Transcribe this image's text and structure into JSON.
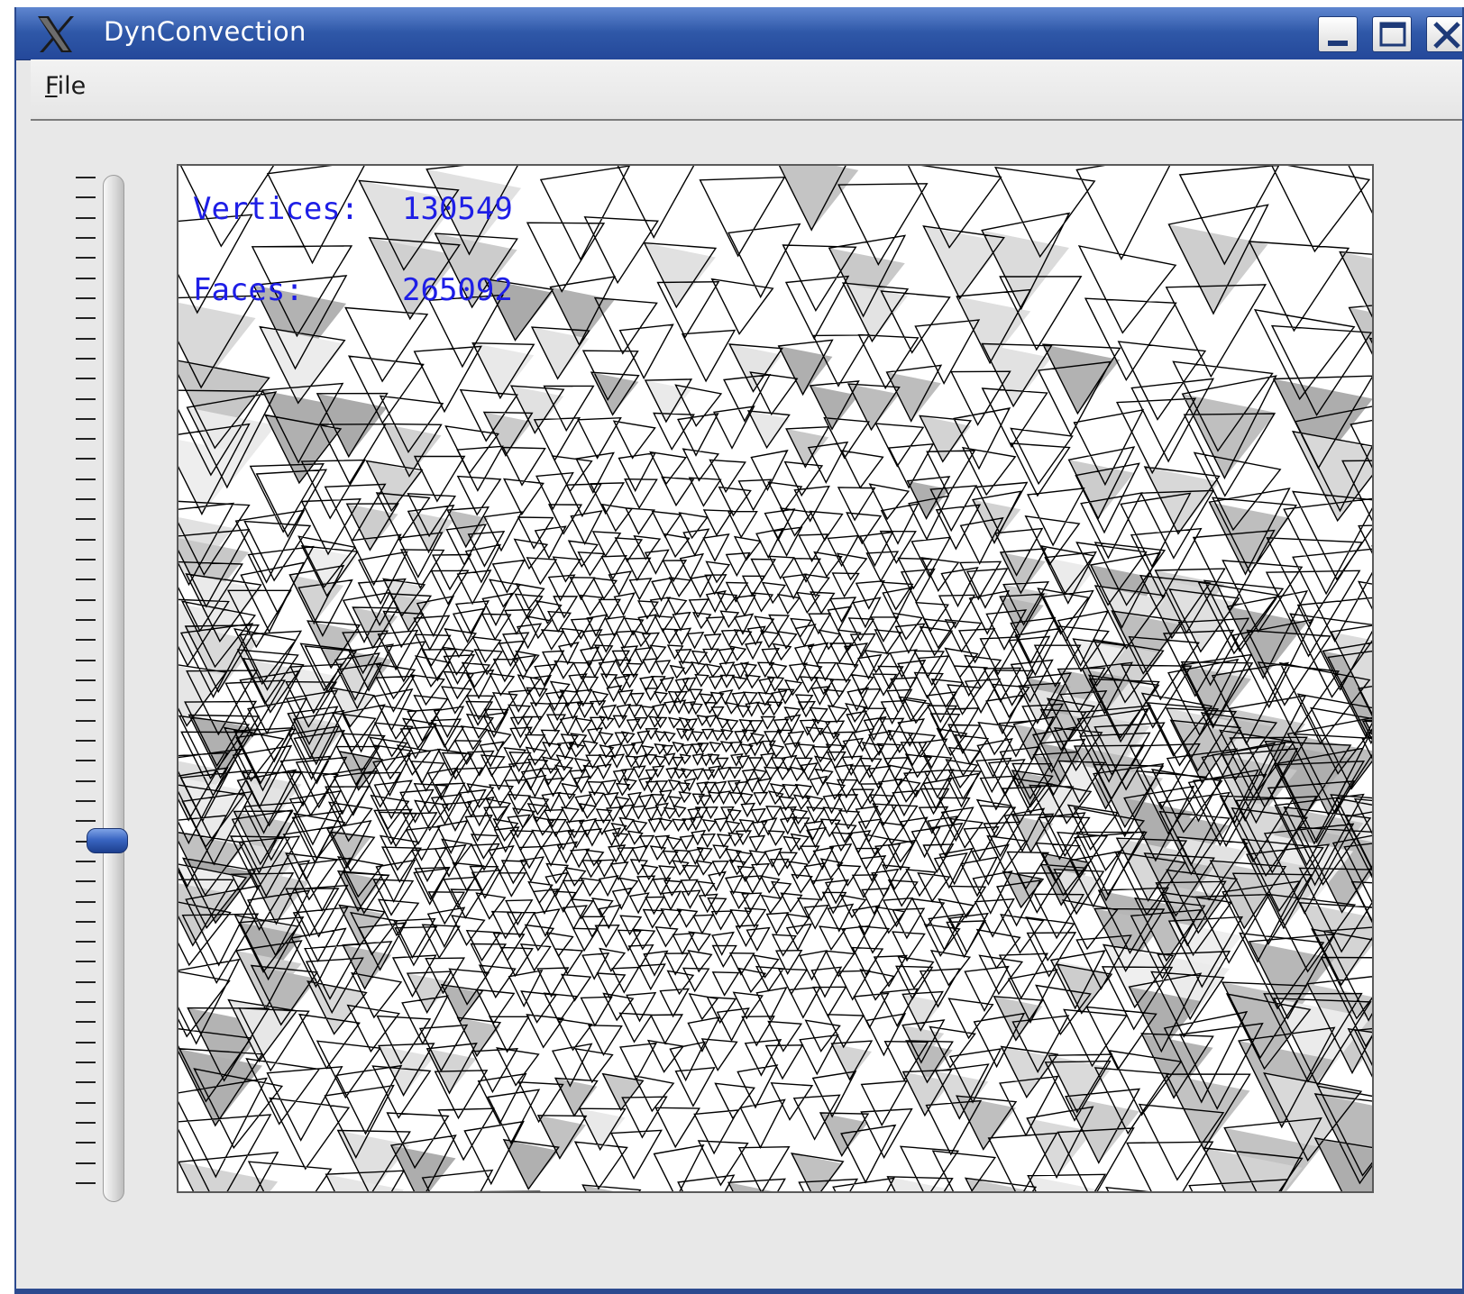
{
  "window": {
    "title": "DynConvection",
    "controls": {
      "minimize": "minimize-icon",
      "maximize": "maximize-icon",
      "close": "close-icon"
    },
    "app_icon": "x-logo-icon"
  },
  "menubar": {
    "items": [
      {
        "mnemonic": "F",
        "rest": "ile",
        "label": "File"
      }
    ]
  },
  "slider": {
    "orientation": "vertical",
    "level_fraction_from_top": 0.66,
    "accent_color": "#3a66c2"
  },
  "viewport": {
    "overlay": {
      "vertices_label": "Vertices:",
      "vertices_value": "130549",
      "faces_label": "Faces:",
      "faces_value": "265092",
      "text_color": "#1e1ee6"
    }
  },
  "colors": {
    "titlebar": "#2f58a8",
    "window_bg": "#e8e8e8"
  }
}
